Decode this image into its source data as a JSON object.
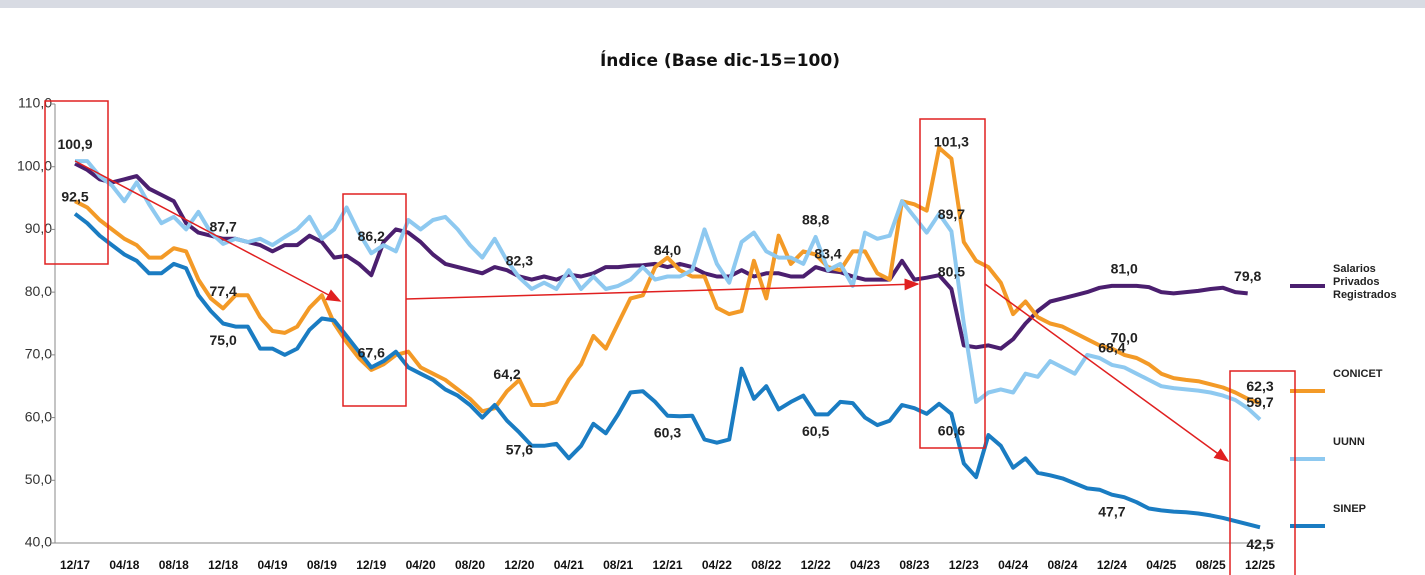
{
  "chart_data": {
    "type": "line",
    "title": "Índice (Base dic-15=100)",
    "categories": [
      "12/17",
      null,
      null,
      null,
      "04/18",
      null,
      null,
      null,
      "08/18",
      null,
      null,
      null,
      "12/18",
      null,
      null,
      null,
      "04/19",
      null,
      null,
      null,
      "08/19",
      null,
      null,
      null,
      "12/19",
      null,
      null,
      null,
      "04/20",
      null,
      null,
      null,
      "08/20",
      null,
      null,
      null,
      "12/20",
      null,
      null,
      null,
      "04/21",
      null,
      null,
      null,
      "08/21",
      null,
      null,
      null,
      "12/21",
      null,
      null,
      null,
      "04/22",
      null,
      null,
      null,
      "08/22",
      null,
      null,
      null,
      "12/22",
      null,
      null,
      null,
      "04/23",
      null,
      null,
      null,
      "08/23",
      null,
      null,
      null,
      "12/23",
      null,
      null,
      null,
      "04/24",
      null,
      null,
      null,
      "08/24",
      null,
      null,
      null,
      "12/24",
      null,
      null,
      null,
      "04/25",
      null,
      null,
      null,
      "08/25",
      null,
      null,
      null,
      "12/25"
    ],
    "ylim": [
      40,
      110
    ],
    "yticks": [
      {
        "value": 40,
        "label": "40,0"
      },
      {
        "value": 50,
        "label": "50,0"
      },
      {
        "value": 60,
        "label": "60,0"
      },
      {
        "value": 70,
        "label": "70,0"
      },
      {
        "value": 80,
        "label": "80,0"
      },
      {
        "value": 90,
        "label": "90,0"
      },
      {
        "value": 100,
        "label": "100,0"
      },
      {
        "value": 110,
        "label": "110,0"
      }
    ],
    "grid": false,
    "legend": "right",
    "series": [
      {
        "name": "Salarios Privados Registrados",
        "color": "#4b1f6f",
        "values": [
          100.5,
          99.5,
          98,
          97.5,
          98,
          98.5,
          96.5,
          95.5,
          94.5,
          91,
          89.5,
          89,
          88.5,
          88.5,
          88,
          87.5,
          86.5,
          87.5,
          87.5,
          89,
          88,
          85.5,
          85.8,
          84.5,
          82.7,
          88,
          90,
          89.5,
          88,
          86,
          84.5,
          84,
          83.5,
          83,
          84,
          83.5,
          82.5,
          82,
          82.5,
          82,
          82.8,
          82.5,
          83,
          84,
          84,
          84.2,
          84.3,
          84.5,
          84,
          84.5,
          84,
          83,
          82.5,
          82.5,
          83.5,
          82.5,
          83,
          83,
          82.5,
          82.5,
          84,
          83.4,
          83.2,
          82.5,
          82,
          82,
          82,
          85,
          82,
          82.3,
          82.7,
          80.5,
          71.5,
          71.2,
          71.5,
          71,
          72.5,
          75,
          77,
          78.5,
          79,
          79.5,
          80,
          80.7,
          81,
          81,
          81,
          80.8,
          80,
          79.8,
          80,
          80.2,
          80.5,
          80.7,
          80,
          79.8,
          null
        ],
        "value_labels": [
          null,
          null,
          null,
          null,
          null,
          null,
          null,
          null,
          null,
          null,
          null,
          null,
          null,
          null,
          null,
          null,
          null,
          null,
          null,
          null,
          null,
          null,
          null,
          null,
          null,
          null,
          null,
          null,
          null,
          null,
          null,
          null,
          null,
          null,
          null,
          null,
          null,
          null,
          null,
          null,
          null,
          null,
          null,
          null,
          null,
          null,
          null,
          null,
          "84,0",
          null,
          null,
          null,
          null,
          null,
          null,
          null,
          null,
          null,
          null,
          null,
          null,
          "83,4",
          null,
          null,
          null,
          null,
          null,
          null,
          null,
          null,
          null,
          "80,5",
          null,
          null,
          null,
          null,
          null,
          null,
          null,
          null,
          null,
          null,
          null,
          null,
          null,
          "81,0",
          null,
          null,
          null,
          null,
          null,
          null,
          null,
          null,
          null,
          "79,8",
          null
        ]
      },
      {
        "name": "CONICET",
        "color": "#f39a27",
        "values": [
          94.5,
          93.5,
          91.5,
          90,
          88.5,
          87.5,
          85.5,
          85.5,
          87,
          86.5,
          82,
          79,
          77.4,
          79.5,
          79.5,
          76,
          73.8,
          73.5,
          74.5,
          77.5,
          79.5,
          75,
          72,
          69.5,
          67.6,
          68.5,
          70,
          70.5,
          68,
          67,
          66,
          64.5,
          63,
          61,
          61.5,
          64.2,
          66,
          62,
          62,
          62.5,
          66,
          68.5,
          73,
          71,
          75,
          79,
          79.5,
          84,
          85.5,
          83.5,
          82.5,
          82.5,
          77.5,
          76.5,
          77,
          85,
          79,
          89,
          84.5,
          86.5,
          86,
          84,
          83.5,
          86.5,
          86.5,
          83,
          82,
          94.5,
          94,
          93,
          103,
          101.3,
          88,
          85,
          84,
          81.5,
          76.5,
          78.5,
          76,
          75,
          74.5,
          73.5,
          72.5,
          71.5,
          71,
          70,
          69.5,
          68.5,
          67,
          66.3,
          66,
          65.8,
          65.3,
          64.8,
          64,
          63,
          62.3
        ],
        "value_labels": [
          null,
          null,
          null,
          null,
          null,
          null,
          null,
          null,
          null,
          null,
          null,
          null,
          "77,4",
          null,
          null,
          null,
          null,
          null,
          null,
          null,
          null,
          null,
          null,
          null,
          "67,6",
          null,
          null,
          null,
          null,
          null,
          null,
          null,
          null,
          null,
          null,
          "64,2",
          null,
          null,
          null,
          null,
          null,
          null,
          null,
          null,
          null,
          null,
          null,
          null,
          null,
          null,
          null,
          null,
          null,
          null,
          null,
          null,
          null,
          null,
          null,
          null,
          null,
          null,
          null,
          null,
          null,
          null,
          null,
          null,
          null,
          null,
          null,
          "101,3",
          null,
          null,
          null,
          null,
          null,
          null,
          null,
          null,
          null,
          null,
          null,
          null,
          null,
          "70,0",
          null,
          null,
          null,
          null,
          null,
          null,
          null,
          null,
          null,
          null,
          "62,3"
        ]
      },
      {
        "name": "UUNN",
        "color": "#8ec9f0",
        "values": [
          100.9,
          100.9,
          98.5,
          97,
          94.5,
          97.5,
          94,
          91,
          92,
          90,
          92.8,
          89.5,
          87.7,
          88.5,
          88,
          88.5,
          87.5,
          88.8,
          90,
          92,
          88.5,
          90,
          93.5,
          89.5,
          86.2,
          87.5,
          86.5,
          91.5,
          90,
          91.5,
          92,
          90,
          87.5,
          85.5,
          88.5,
          85,
          82.3,
          80.5,
          81.5,
          80.5,
          83.5,
          80.5,
          82.5,
          80.5,
          81,
          82,
          84,
          82,
          82.5,
          82.5,
          83.5,
          90,
          84.5,
          81.5,
          88,
          89.5,
          86.5,
          85.5,
          85.5,
          84.5,
          88.8,
          83.5,
          84.5,
          81,
          89.5,
          88.5,
          89,
          94.5,
          92,
          89.5,
          92.5,
          89.7,
          75,
          62.5,
          64,
          64.5,
          64,
          67,
          66.5,
          69,
          68,
          67,
          70,
          69.5,
          68.4,
          68,
          67,
          66,
          65,
          64.7,
          64.5,
          64.3,
          64,
          63.5,
          62.8,
          61.5,
          59.7
        ],
        "value_labels": [
          "100,9",
          null,
          null,
          null,
          null,
          null,
          null,
          null,
          null,
          null,
          null,
          null,
          "87,7",
          null,
          null,
          null,
          null,
          null,
          null,
          null,
          null,
          null,
          null,
          null,
          "86,2",
          null,
          null,
          null,
          null,
          null,
          null,
          null,
          null,
          null,
          null,
          null,
          "82,3",
          null,
          null,
          null,
          null,
          null,
          null,
          null,
          null,
          null,
          null,
          null,
          null,
          null,
          null,
          null,
          null,
          null,
          null,
          null,
          null,
          null,
          null,
          null,
          "88,8",
          null,
          null,
          null,
          null,
          null,
          null,
          null,
          null,
          null,
          null,
          "89,7",
          null,
          null,
          null,
          null,
          null,
          null,
          null,
          null,
          null,
          null,
          null,
          null,
          "68,4",
          null,
          null,
          null,
          null,
          null,
          null,
          null,
          null,
          null,
          null,
          null,
          "59,7"
        ]
      },
      {
        "name": "SINEP",
        "color": "#1a7cc2",
        "values": [
          92.5,
          91,
          89,
          87.5,
          86,
          85,
          83,
          83,
          84.5,
          83.8,
          79.5,
          77,
          75,
          74.5,
          74.5,
          71,
          71,
          70,
          71,
          74,
          75.8,
          75.5,
          73,
          70.5,
          68,
          69,
          70.5,
          68,
          67,
          66,
          64.5,
          63.5,
          62,
          60,
          62,
          59.5,
          57.6,
          55.5,
          55.5,
          55.8,
          53.5,
          55.5,
          59,
          57.5,
          60.5,
          64,
          64.2,
          62.5,
          60.3,
          60.2,
          60.3,
          56.5,
          56,
          56.5,
          67.8,
          63,
          65,
          61.3,
          62.5,
          63.5,
          60.5,
          60.5,
          62.5,
          62.3,
          60,
          58.8,
          59.5,
          62,
          61.5,
          60.6,
          62.2,
          60.6,
          52.7,
          50.5,
          57.2,
          55.5,
          52,
          53.5,
          51.2,
          50.8,
          50.3,
          49.5,
          48.7,
          48.5,
          47.7,
          47.3,
          46.5,
          45.5,
          45.2,
          45,
          44.9,
          44.7,
          44.4,
          44,
          43.5,
          43,
          42.5
        ],
        "value_labels": [
          "92,5",
          null,
          null,
          null,
          null,
          null,
          null,
          null,
          null,
          null,
          null,
          null,
          "75,0",
          null,
          null,
          null,
          null,
          null,
          null,
          null,
          null,
          null,
          null,
          null,
          null,
          null,
          null,
          null,
          null,
          null,
          null,
          null,
          null,
          null,
          null,
          null,
          "57,6",
          null,
          null,
          null,
          null,
          null,
          null,
          null,
          null,
          null,
          null,
          null,
          "60,3",
          null,
          null,
          null,
          null,
          null,
          null,
          null,
          null,
          null,
          null,
          null,
          "60,5",
          null,
          null,
          null,
          null,
          null,
          null,
          null,
          null,
          null,
          null,
          "60,6",
          null,
          null,
          null,
          null,
          null,
          null,
          null,
          null,
          null,
          null,
          null,
          null,
          "47,7",
          null,
          null,
          null,
          null,
          null,
          null,
          null,
          null,
          null,
          null,
          null,
          "42,5"
        ]
      }
    ]
  }
}
